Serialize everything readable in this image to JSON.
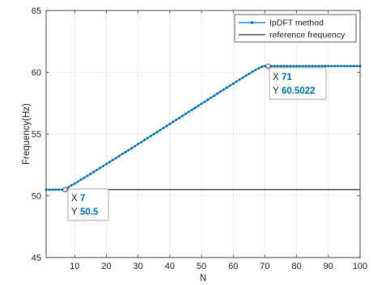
{
  "chart_data": {
    "type": "line",
    "xlabel": "N",
    "ylabel": "Frequency(Hz)",
    "xlim": [
      1,
      100
    ],
    "ylim": [
      45,
      65
    ],
    "xticks": [
      10,
      20,
      30,
      40,
      50,
      60,
      70,
      80,
      90,
      100
    ],
    "yticks": [
      45,
      50,
      55,
      60,
      65
    ],
    "grid": true,
    "legend_position": "top-right",
    "series": [
      {
        "name": "IpDFT method",
        "color": "#0072BD",
        "marker": "dot",
        "x": [
          1,
          2,
          3,
          4,
          5,
          6,
          7,
          8,
          9,
          10,
          11,
          12,
          13,
          14,
          15,
          16,
          17,
          18,
          19,
          20,
          21,
          22,
          23,
          24,
          25,
          26,
          27,
          28,
          29,
          30,
          31,
          32,
          33,
          34,
          35,
          36,
          37,
          38,
          39,
          40,
          41,
          42,
          43,
          44,
          45,
          46,
          47,
          48,
          49,
          50,
          51,
          52,
          53,
          54,
          55,
          56,
          57,
          58,
          59,
          60,
          61,
          62,
          63,
          64,
          65,
          66,
          67,
          68,
          69,
          70,
          71,
          72,
          73,
          74,
          75,
          76,
          77,
          78,
          79,
          80,
          81,
          82,
          83,
          84,
          85,
          86,
          87,
          88,
          89,
          90,
          91,
          92,
          93,
          94,
          95,
          96,
          97,
          98,
          99,
          100
        ],
        "y": [
          50.5,
          50.5,
          50.5,
          50.5,
          50.5,
          50.5,
          50.5,
          50.69,
          50.84,
          50.99,
          51.14,
          51.3,
          51.45,
          51.61,
          51.77,
          51.93,
          52.09,
          52.25,
          52.41,
          52.57,
          52.73,
          52.89,
          53.05,
          53.21,
          53.38,
          53.54,
          53.7,
          53.86,
          54.02,
          54.19,
          54.35,
          54.51,
          54.67,
          54.84,
          55.0,
          55.16,
          55.33,
          55.49,
          55.65,
          55.82,
          55.98,
          56.14,
          56.31,
          56.47,
          56.63,
          56.8,
          56.96,
          57.12,
          57.29,
          57.45,
          57.61,
          57.78,
          57.94,
          58.1,
          58.27,
          58.43,
          58.59,
          58.76,
          58.92,
          59.08,
          59.24,
          59.4,
          59.56,
          59.72,
          59.87,
          60.03,
          60.18,
          60.32,
          60.44,
          60.5022,
          60.5022,
          60.5022,
          60.5022,
          60.5022,
          60.5022,
          60.5022,
          60.5022,
          60.5022,
          60.5022,
          60.5022,
          60.5022,
          60.5022,
          60.5022,
          60.5022,
          60.5022,
          60.5022,
          60.5022,
          60.5022,
          60.5022,
          60.5022,
          60.5022,
          60.5022,
          60.5022,
          60.5022,
          60.5022,
          60.5022,
          60.5022,
          60.5022,
          60.5022,
          60.5022
        ]
      },
      {
        "name": "reference frequency",
        "color": "#000000",
        "marker": "none",
        "x": [
          1,
          100
        ],
        "y": [
          50.5,
          50.5
        ]
      }
    ],
    "annotations": [
      {
        "x_label": "X",
        "x_value": "7",
        "y_label": "Y",
        "y_value": "50.5",
        "point": [
          7,
          50.5
        ],
        "value_color": "#0072BD"
      },
      {
        "x_label": "X",
        "x_value": "71",
        "y_label": "Y",
        "y_value": "60.5022",
        "point": [
          71,
          60.5022
        ],
        "value_color": "#0072BD"
      }
    ]
  }
}
